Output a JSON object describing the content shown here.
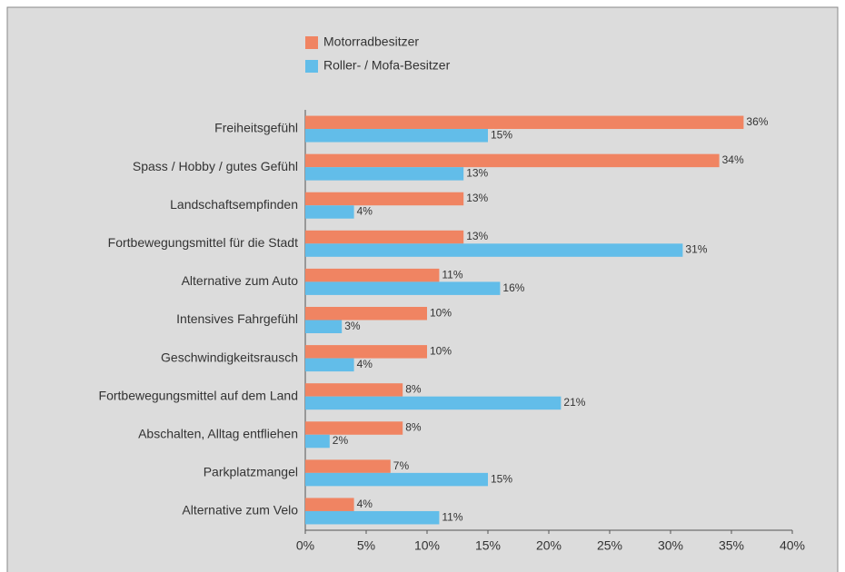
{
  "chart_data": {
    "type": "hbar",
    "categories": [
      "Freiheitsgefühl",
      "Spass / Hobby / gutes Gefühl",
      "Landschaftsempfinden",
      "Fortbewegungsmittel für die Stadt",
      "Alternative zum Auto",
      "Intensives Fahrgefühl",
      "Geschwindigkeitsrausch",
      "Fortbewegungsmittel auf dem Land",
      "Abschalten, Alltag entfliehen",
      "Parkplatzmangel",
      "Alternative zum Velo"
    ],
    "series": [
      {
        "name": "Motorradbesitzer",
        "color": "#f08462",
        "values": [
          36,
          34,
          13,
          13,
          11,
          10,
          10,
          8,
          8,
          7,
          4
        ],
        "value_labels": [
          "36%",
          "34%",
          "13%",
          "13%",
          "11%",
          "10%",
          "10%",
          "8%",
          "8%",
          "7%",
          "4%"
        ]
      },
      {
        "name": "Roller- / Mofa-Besitzer",
        "color": "#62bde9",
        "values": [
          15,
          13,
          4,
          31,
          16,
          3,
          4,
          21,
          2,
          15,
          11
        ],
        "value_labels": [
          "15%",
          "13%",
          "4%",
          "31%",
          "16%",
          "3%",
          "4%",
          "21%",
          "2%",
          "15%",
          "11%"
        ]
      }
    ],
    "xlim": [
      0,
      40
    ],
    "xticks": [
      {
        "value": 0,
        "label": "0%"
      },
      {
        "value": 5,
        "label": "5%"
      },
      {
        "value": 10,
        "label": "10%"
      },
      {
        "value": 15,
        "label": "15%"
      },
      {
        "value": 20,
        "label": "20%"
      },
      {
        "value": 25,
        "label": "25%"
      },
      {
        "value": 30,
        "label": "30%"
      },
      {
        "value": 35,
        "label": "35%"
      },
      {
        "value": 40,
        "label": "40%"
      }
    ],
    "legend": "top"
  }
}
